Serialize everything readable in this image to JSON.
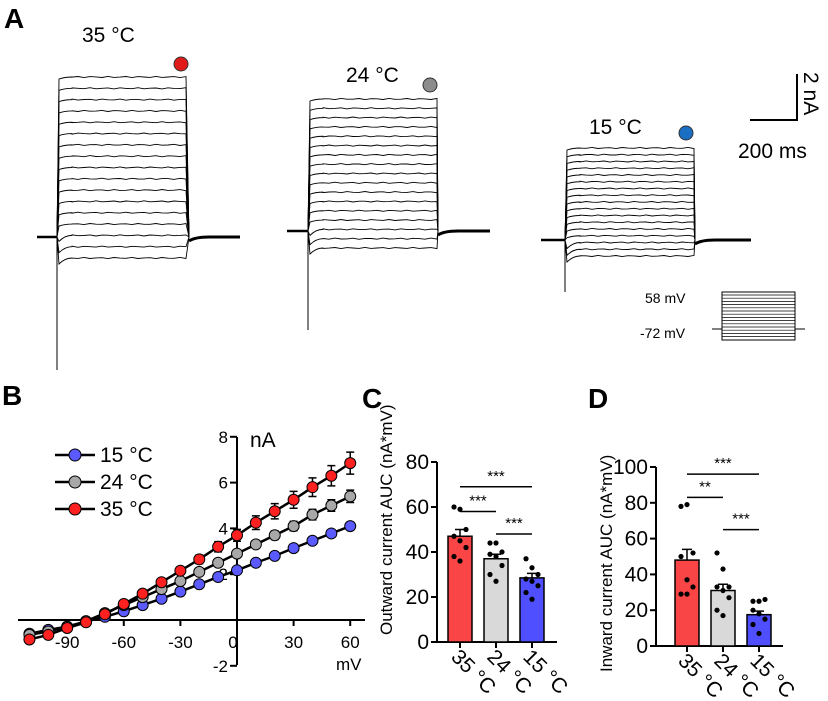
{
  "panel_labels": {
    "a": "A",
    "b": "B",
    "c": "C",
    "d": "D"
  },
  "colors": {
    "c35": "#ff2020",
    "c24": "#a8a8a8",
    "c15": "#5a5aff",
    "bar35": "#f94545",
    "bar24": "#d9d9d9",
    "bar15": "#4f4fff",
    "dot15_trace": "#1a6fc4"
  },
  "panel_a": {
    "traces": [
      {
        "label": "35 °C",
        "dot_color": "#e01b1b",
        "n_sweeps": 17
      },
      {
        "label": "24 °C",
        "dot_color": "#8c8c8c",
        "n_sweeps": 17
      },
      {
        "label": "15 °C",
        "dot_color": "#1a6fc4",
        "n_sweeps": 17
      }
    ],
    "scale_bar": {
      "current": "2 nA",
      "time": "200 ms"
    },
    "protocol": {
      "top": "58 mV",
      "bottom": "-72 mV"
    }
  },
  "chart_data": [
    {
      "type": "line",
      "panel": "B",
      "xlabel": "mV",
      "ylabel": "nA",
      "xlim": [
        -115,
        65
      ],
      "ylim": [
        -2,
        8
      ],
      "x_ticks": [
        "-90",
        "-60",
        "-30",
        "0",
        "30",
        "60"
      ],
      "y_ticks": [
        "-2",
        "2",
        "4",
        "6",
        "8"
      ],
      "legend_position": "top-left",
      "x": [
        -110,
        -100,
        -90,
        -80,
        -70,
        -60,
        -50,
        -40,
        -30,
        -20,
        -10,
        0,
        10,
        20,
        30,
        40,
        50,
        60
      ],
      "series": [
        {
          "name": "15 °C",
          "color": "#5a5aff",
          "values": [
            -0.6,
            -0.43,
            -0.29,
            -0.07,
            0.14,
            0.38,
            0.65,
            0.93,
            1.24,
            1.56,
            1.88,
            2.17,
            2.5,
            2.8,
            3.14,
            3.46,
            3.78,
            4.1
          ],
          "sem": 0.2
        },
        {
          "name": "24 °C",
          "color": "#a8a8a8",
          "values": [
            -0.65,
            -0.5,
            -0.3,
            -0.05,
            0.3,
            0.65,
            1.0,
            1.35,
            1.7,
            2.1,
            2.5,
            2.9,
            3.3,
            3.7,
            4.1,
            4.6,
            5.0,
            5.4
          ],
          "sem": 0.25
        },
        {
          "name": "35 °C",
          "color": "#ff2020",
          "values": [
            -0.85,
            -0.65,
            -0.35,
            -0.1,
            0.25,
            0.7,
            1.15,
            1.65,
            2.15,
            2.65,
            3.2,
            3.7,
            4.25,
            4.75,
            5.25,
            5.8,
            6.3,
            6.85
          ],
          "sem": 0.35
        }
      ]
    },
    {
      "type": "bar",
      "panel": "C",
      "ylabel": "Outward current AUC (nA*mV)",
      "ylim": [
        0,
        80
      ],
      "y_ticks": [
        "0",
        "20",
        "40",
        "60",
        "80"
      ],
      "categories": [
        "35 °C",
        "24 °C",
        "15 °C"
      ],
      "values": [
        47,
        37,
        28.5
      ],
      "sem": [
        3,
        2,
        2
      ],
      "points": [
        [
          60,
          59,
          50,
          47,
          45,
          42,
          38,
          36
        ],
        [
          44,
          44,
          40,
          39,
          38,
          34,
          30,
          27
        ],
        [
          37,
          33,
          30,
          28,
          27,
          25,
          22,
          19
        ]
      ],
      "significance": [
        {
          "from": 0,
          "to": 2,
          "level": 69,
          "label": "***"
        },
        {
          "from": 0,
          "to": 1,
          "level": 58,
          "label": "***"
        },
        {
          "from": 1,
          "to": 2,
          "level": 48,
          "label": "***"
        }
      ]
    },
    {
      "type": "bar",
      "panel": "D",
      "ylabel": "Inward current AUC (nA*mV)",
      "ylim": [
        0,
        100
      ],
      "y_ticks": [
        "0",
        "20",
        "40",
        "60",
        "80",
        "100"
      ],
      "categories": [
        "35 °C",
        "24 °C",
        "15 °C"
      ],
      "values": [
        48,
        31,
        17.5
      ],
      "sem": [
        6,
        3.5,
        2
      ],
      "points": [
        [
          78,
          79,
          52,
          50,
          37,
          33,
          29,
          29
        ],
        [
          52,
          43,
          33,
          33,
          31,
          27,
          20,
          17
        ],
        [
          25,
          25,
          26,
          20,
          18,
          15,
          12,
          7
        ]
      ],
      "significance": [
        {
          "from": 0,
          "to": 2,
          "level": 96,
          "label": "***"
        },
        {
          "from": 0,
          "to": 1,
          "level": 83,
          "label": "**"
        },
        {
          "from": 1,
          "to": 2,
          "level": 65,
          "label": "***"
        }
      ]
    }
  ]
}
